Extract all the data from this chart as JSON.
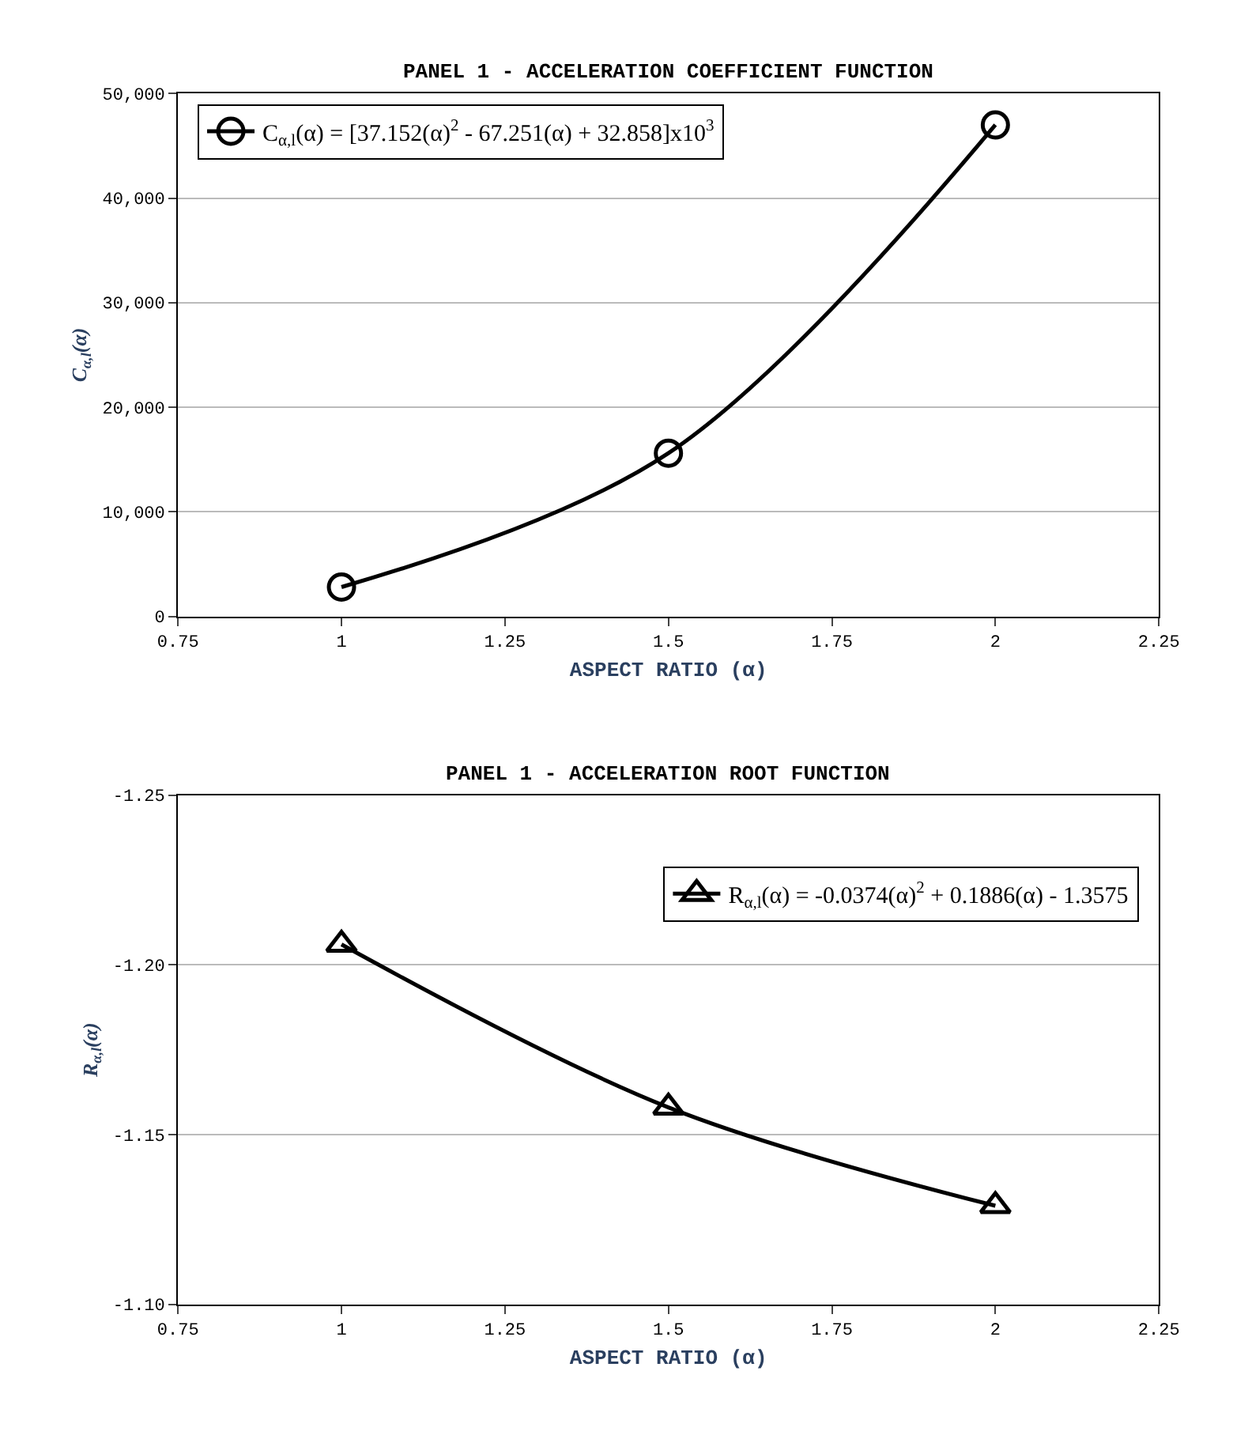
{
  "chart_data": [
    {
      "type": "line",
      "title": "PANEL 1 - ACCELERATION COEFFICIENT FUNCTION",
      "xlabel": "ASPECT RATIO (α)",
      "ylabel": "C$_{α,l}$(α)",
      "x": [
        1,
        1.5,
        2
      ],
      "series": [
        {
          "name": "C$_{α,l}$(α) = [37.152(α)$^{2}$ - 67.251(α) + 32.858]x10$^{3}$",
          "color": "#000000",
          "values": [
            2800,
            15600,
            47000
          ]
        }
      ],
      "xlim": [
        0.75,
        2.25
      ],
      "xticks": [
        0.75,
        1,
        1.25,
        1.5,
        1.75,
        2,
        2.25
      ],
      "ylim": [
        0,
        50000
      ],
      "yticks": [
        0,
        {
          "value": 10000,
          "label": "10,000"
        },
        {
          "value": 20000,
          "label": "20,000"
        },
        {
          "value": 30000,
          "label": "30,000"
        },
        {
          "value": 40000,
          "label": "40,000"
        },
        {
          "value": 50000,
          "label": "50,000"
        }
      ],
      "grid": "y",
      "legend": "top left",
      "marker": "circle",
      "line_style": "solid"
    },
    {
      "type": "line",
      "title": "PANEL 1 - ACCELERATION ROOT FUNCTION",
      "xlabel": "ASPECT RATIO (α)",
      "ylabel": "R$_{α,l}$(α)",
      "x": [
        1,
        1.5,
        2
      ],
      "series": [
        {
          "name": "R$_{α,l}$(α) = -0.0374(α)$^{2}$ + 0.1886(α) - 1.3575",
          "color": "#000000",
          "values": [
            -1.206,
            -1.158,
            -1.129
          ]
        }
      ],
      "xlim": [
        0.75,
        2.25
      ],
      "xticks": [
        0.75,
        1,
        1.25,
        1.5,
        1.75,
        2,
        2.25
      ],
      "ylim": [
        -1.1,
        -1.25
      ],
      "yticks": [
        -1.25,
        {
          "value": -1.2,
          "label": "-1.20"
        },
        -1.15,
        {
          "value": -1.1,
          "label": "-1.10"
        }
      ],
      "grid": "y",
      "legend": "top right",
      "marker": "triangle",
      "line_style": "solid"
    }
  ]
}
